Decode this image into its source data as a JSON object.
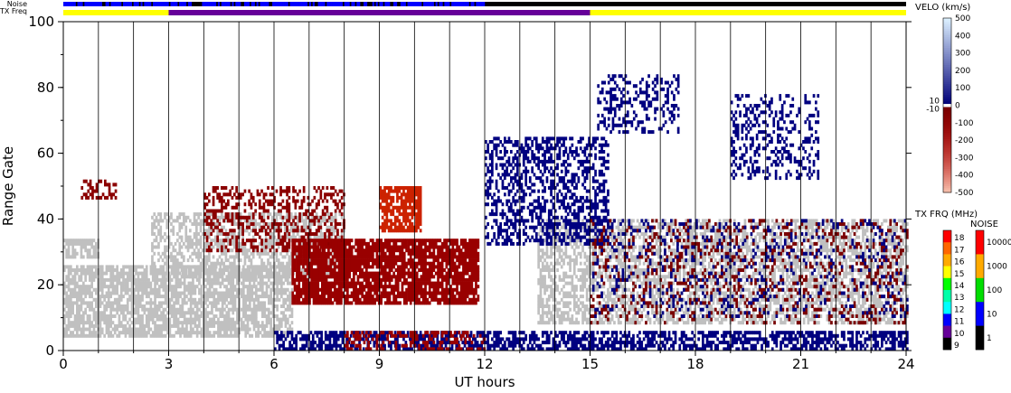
{
  "chart_data": {
    "type": "heatmap",
    "xlabel": "UT hours",
    "ylabel": "Range Gate",
    "xlim": [
      0,
      24
    ],
    "ylim": [
      0,
      100
    ],
    "x_ticks": [
      "0",
      "3",
      "6",
      "9",
      "12",
      "15",
      "18",
      "21",
      "24"
    ],
    "y_ticks": [
      "0",
      "20",
      "40",
      "60",
      "80",
      "100"
    ],
    "top_strips": {
      "noise_label": "Noise",
      "txfreq_label": "TX Freq",
      "txfreq_segments": [
        {
          "start": 0,
          "end": 3,
          "color": "#ffff00"
        },
        {
          "start": 3,
          "end": 15,
          "color": "#660099"
        },
        {
          "start": 15,
          "end": 24,
          "color": "#ffff00"
        }
      ]
    },
    "velocity_colorbar": {
      "title": "VELO (km/s)",
      "labels": [
        "500",
        "400",
        "300",
        "200",
        "100",
        "0",
        "-100",
        "-200",
        "-300",
        "-400",
        "-500"
      ],
      "inner_labels": [
        "10",
        "-10"
      ]
    },
    "txfreq_colorbar": {
      "title": "TX FRQ (MHz)",
      "labels": [
        "18",
        "17",
        "16",
        "15",
        "14",
        "13",
        "12",
        "11",
        "10",
        "9"
      ],
      "colors": [
        "#ff0000",
        "#ff6600",
        "#ffaa00",
        "#ffff00",
        "#00ff00",
        "#00ffaa",
        "#00ffff",
        "#0000ff",
        "#660099",
        "#000000"
      ]
    },
    "noise_colorbar": {
      "title": "NOISE",
      "labels": [
        "10000",
        "1000",
        "100",
        "10",
        "1"
      ],
      "colors": [
        "#ff0000",
        "#ffaa00",
        "#00dd00",
        "#0000ff",
        "#000000"
      ]
    },
    "regions": [
      {
        "name": "ground-scatter-low",
        "t0": 0,
        "t1": 6.5,
        "g0": 4,
        "g1": 26,
        "color": "#c0c0c0",
        "density": 0.75
      },
      {
        "name": "ground-scatter-mid",
        "t0": 2.5,
        "t1": 8,
        "g0": 22,
        "g1": 42,
        "color": "#c0c0c0",
        "density": 0.55
      },
      {
        "name": "ground-scatter-late",
        "t0": 13.5,
        "t1": 24,
        "g0": 8,
        "g1": 40,
        "color": "#c0c0c0",
        "density": 0.55
      },
      {
        "name": "red-band-arc",
        "t0": 4,
        "t1": 8,
        "g0": 30,
        "g1": 50,
        "color": "#8b0000",
        "density": 0.35
      },
      {
        "name": "red-blob-main",
        "t0": 6.5,
        "t1": 11.8,
        "g0": 14,
        "g1": 34,
        "color": "#990000",
        "density": 0.85
      },
      {
        "name": "red-blob-top",
        "t0": 9,
        "t1": 10.2,
        "g0": 36,
        "g1": 50,
        "color": "#cc2200",
        "density": 0.8
      },
      {
        "name": "blue-streak",
        "t0": 12,
        "t1": 15.5,
        "g0": 32,
        "g1": 65,
        "color": "#000080",
        "density": 0.45
      },
      {
        "name": "blue-near-range",
        "t0": 6,
        "t1": 24,
        "g0": 0,
        "g1": 6,
        "color": "#000080",
        "density": 0.6
      },
      {
        "name": "red-near-range",
        "t0": 8,
        "t1": 12,
        "g0": 0,
        "g1": 6,
        "color": "#990000",
        "density": 0.35
      },
      {
        "name": "mixed-late-band",
        "t0": 15,
        "t1": 24,
        "g0": 8,
        "g1": 40,
        "color": "#7a0000",
        "density": 0.18
      },
      {
        "name": "blue-late-band",
        "t0": 15,
        "t1": 24,
        "g0": 10,
        "g1": 40,
        "color": "#000080",
        "density": 0.12
      },
      {
        "name": "arc-1530",
        "t0": 15.2,
        "t1": 17.5,
        "g0": 66,
        "g1": 84,
        "color": "#000080",
        "density": 0.3
      },
      {
        "name": "arc-1930",
        "t0": 19,
        "t1": 21.5,
        "g0": 52,
        "g1": 78,
        "color": "#000080",
        "density": 0.3
      },
      {
        "name": "early-patch",
        "t0": 0.5,
        "t1": 1.5,
        "g0": 46,
        "g1": 52,
        "color": "#8b0000",
        "density": 0.5
      },
      {
        "name": "early-gray",
        "t0": 0,
        "t1": 1,
        "g0": 28,
        "g1": 34,
        "color": "#c0c0c0",
        "density": 0.7
      }
    ]
  }
}
